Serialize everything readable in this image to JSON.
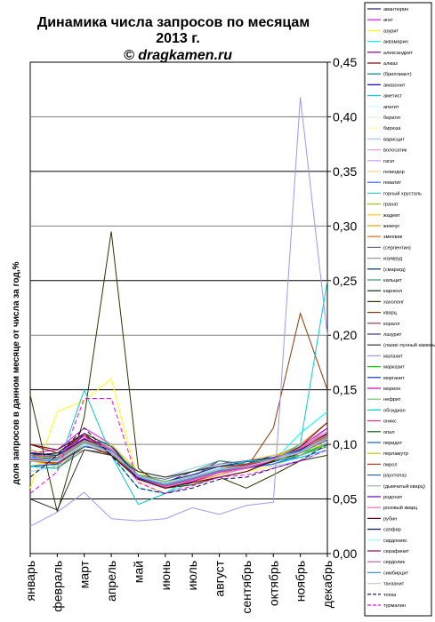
{
  "chart_data": {
    "type": "line",
    "title": "Динамика числа запросов по месяцам",
    "subtitle": "2013 г.",
    "copyright": "© dragkamen.ru",
    "ylabel": "доля запросов в данном месяце от числа за год,%",
    "ylim": [
      0,
      0.45
    ],
    "ytick_labels": [
      "0,00",
      "0,05",
      "0,10",
      "0,15",
      "0,20",
      "0,25",
      "0,30",
      "0,35",
      "0,40",
      "0,45"
    ],
    "grid": true,
    "legend_position": "right",
    "categories": [
      "январь",
      "февраль",
      "март",
      "апрель",
      "май",
      "июнь",
      "июль",
      "август",
      "сентябрь",
      "октябрь",
      "ноябрь",
      "декабрь"
    ],
    "series": [
      {
        "name": "авантюрин",
        "color": "#1a1a8c",
        "values": [
          0.085,
          0.088,
          0.1,
          0.09,
          0.07,
          0.065,
          0.075,
          0.08,
          0.078,
          0.085,
          0.09,
          0.1
        ]
      },
      {
        "name": "агат",
        "color": "#ff00ff",
        "values": [
          0.092,
          0.095,
          0.115,
          0.1,
          0.065,
          0.06,
          0.072,
          0.08,
          0.08,
          0.088,
          0.1,
          0.12
        ]
      },
      {
        "name": "азурит",
        "color": "#ffff00",
        "values": [
          0.06,
          0.13,
          0.14,
          0.16,
          0.065,
          0.055,
          0.065,
          0.07,
          0.075,
          0.08,
          0.09,
          0.1
        ]
      },
      {
        "name": "аквамарин",
        "color": "#00ffff",
        "values": [
          0.09,
          0.08,
          0.1,
          0.09,
          0.06,
          0.055,
          0.065,
          0.075,
          0.08,
          0.085,
          0.11,
          0.13
        ]
      },
      {
        "name": "александрит",
        "color": "#800080",
        "values": [
          0.095,
          0.088,
          0.105,
          0.095,
          0.07,
          0.062,
          0.07,
          0.085,
          0.08,
          0.082,
          0.09,
          0.1
        ]
      },
      {
        "name": "алмаз",
        "color": "#800000",
        "values": [
          0.1,
          0.092,
          0.108,
          0.09,
          0.068,
          0.06,
          0.065,
          0.07,
          0.075,
          0.085,
          0.095,
          0.115
        ]
      },
      {
        "name": "(бриллиант)",
        "color": "#008080",
        "values": [
          0.092,
          0.085,
          0.1,
          0.09,
          0.072,
          0.065,
          0.072,
          0.08,
          0.08,
          0.085,
          0.088,
          0.095
        ]
      },
      {
        "name": "амазонит",
        "color": "#0000ff",
        "values": [
          0.085,
          0.082,
          0.11,
          0.1,
          0.07,
          0.06,
          0.07,
          0.075,
          0.082,
          0.09,
          0.095,
          0.11
        ]
      },
      {
        "name": "аметист",
        "color": "#00ccff",
        "values": [
          0.09,
          0.085,
          0.105,
          0.095,
          0.07,
          0.062,
          0.068,
          0.078,
          0.08,
          0.082,
          0.088,
          0.095
        ]
      },
      {
        "name": "апатит",
        "color": "#ccffff",
        "values": [
          0.08,
          0.075,
          0.095,
          0.09,
          0.065,
          0.06,
          0.07,
          0.08,
          0.085,
          0.09,
          0.1,
          0.11
        ]
      },
      {
        "name": "берилл",
        "color": "#ccffcc",
        "values": [
          0.082,
          0.08,
          0.1,
          0.095,
          0.075,
          0.07,
          0.075,
          0.082,
          0.08,
          0.085,
          0.09,
          0.1
        ]
      },
      {
        "name": "бирюза",
        "color": "#ffff99",
        "values": [
          0.09,
          0.092,
          0.11,
          0.1,
          0.072,
          0.065,
          0.07,
          0.078,
          0.08,
          0.085,
          0.09,
          0.098
        ]
      },
      {
        "name": "варисцит",
        "color": "#99ccff",
        "values": [
          0.075,
          0.08,
          0.1,
          0.1,
          0.075,
          0.07,
          0.078,
          0.085,
          0.082,
          0.08,
          0.085,
          0.095
        ]
      },
      {
        "name": "волосатик",
        "color": "#ff99cc",
        "values": [
          0.085,
          0.09,
          0.1,
          0.09,
          0.07,
          0.065,
          0.07,
          0.075,
          0.08,
          0.085,
          0.095,
          0.11
        ]
      },
      {
        "name": "гагат",
        "color": "#cc99ff",
        "values": [
          0.09,
          0.088,
          0.1,
          0.092,
          0.068,
          0.06,
          0.066,
          0.072,
          0.078,
          0.085,
          0.095,
          0.115
        ]
      },
      {
        "name": "гелиодор",
        "color": "#ffcc99",
        "values": [
          0.08,
          0.085,
          0.095,
          0.09,
          0.075,
          0.07,
          0.072,
          0.08,
          0.082,
          0.085,
          0.092,
          0.1
        ]
      },
      {
        "name": "гематит",
        "color": "#3366ff",
        "values": [
          0.088,
          0.09,
          0.105,
          0.1,
          0.07,
          0.062,
          0.07,
          0.075,
          0.078,
          0.082,
          0.09,
          0.1
        ]
      },
      {
        "name": "горный хрусталь",
        "color": "#33cccc",
        "values": [
          0.09,
          0.085,
          0.1,
          0.095,
          0.072,
          0.065,
          0.07,
          0.078,
          0.08,
          0.084,
          0.09,
          0.102
        ]
      },
      {
        "name": "гранат",
        "color": "#99cc00",
        "values": [
          0.095,
          0.088,
          0.105,
          0.09,
          0.07,
          0.06,
          0.068,
          0.075,
          0.08,
          0.088,
          0.098,
          0.11
        ]
      },
      {
        "name": "жадеит",
        "color": "#ffcc00",
        "values": [
          0.085,
          0.08,
          0.1,
          0.1,
          0.075,
          0.065,
          0.07,
          0.078,
          0.085,
          0.09,
          0.095,
          0.1
        ]
      },
      {
        "name": "жемчуг",
        "color": "#ff9900",
        "values": [
          0.09,
          0.085,
          0.095,
          0.09,
          0.07,
          0.063,
          0.066,
          0.072,
          0.08,
          0.088,
          0.1,
          0.12
        ]
      },
      {
        "name": "змеевик",
        "color": "#ff6600",
        "values": [
          0.085,
          0.082,
          0.1,
          0.09,
          0.07,
          0.065,
          0.072,
          0.08,
          0.082,
          0.085,
          0.095,
          0.105
        ]
      },
      {
        "name": "(серпентин)",
        "color": "#666699",
        "values": [
          0.08,
          0.078,
          0.095,
          0.092,
          0.072,
          0.068,
          0.075,
          0.082,
          0.085,
          0.088,
          0.09,
          0.1
        ]
      },
      {
        "name": "изумруд",
        "color": "#969696",
        "values": [
          0.09,
          0.09,
          0.108,
          0.095,
          0.068,
          0.06,
          0.066,
          0.074,
          0.078,
          0.085,
          0.095,
          0.11
        ]
      },
      {
        "name": "(смарагд)",
        "color": "#003366",
        "values": [
          0.085,
          0.086,
          0.1,
          0.092,
          0.07,
          0.064,
          0.07,
          0.078,
          0.08,
          0.086,
          0.093,
          0.105
        ]
      },
      {
        "name": "кальцит",
        "color": "#339966",
        "values": [
          0.08,
          0.078,
          0.098,
          0.095,
          0.075,
          0.07,
          0.075,
          0.085,
          0.082,
          0.085,
          0.09,
          0.098
        ]
      },
      {
        "name": "карнеол",
        "color": "#003300",
        "values": [
          0.09,
          0.092,
          0.11,
          0.098,
          0.07,
          0.062,
          0.068,
          0.075,
          0.078,
          0.084,
          0.092,
          0.108
        ]
      },
      {
        "name": "хахолонг",
        "color": "#333300",
        "values": [
          0.145,
          0.038,
          0.125,
          0.295,
          0.078,
          0.06,
          0.063,
          0.07,
          0.06,
          0.072,
          0.085,
          0.09
        ]
      },
      {
        "name": "кварц",
        "color": "#993300",
        "values": [
          0.085,
          0.084,
          0.1,
          0.09,
          0.07,
          0.065,
          0.07,
          0.075,
          0.078,
          0.115,
          0.22,
          0.15
        ]
      },
      {
        "name": "коралл",
        "color": "#993366",
        "values": [
          0.09,
          0.088,
          0.105,
          0.095,
          0.07,
          0.062,
          0.068,
          0.076,
          0.08,
          0.087,
          0.096,
          0.11
        ]
      },
      {
        "name": "лазурит",
        "color": "#333399",
        "values": [
          0.088,
          0.085,
          0.102,
          0.094,
          0.071,
          0.064,
          0.07,
          0.077,
          0.08,
          0.085,
          0.094,
          0.106
        ]
      },
      {
        "name": "(лазис-лунный камень)",
        "color": "#333333",
        "values": [
          0.05,
          0.04,
          0.095,
          0.09,
          0.075,
          0.07,
          0.075,
          0.08,
          0.082,
          0.085,
          0.09,
          0.1
        ]
      },
      {
        "name": "малахит",
        "color": "#9999ff",
        "values": [
          0.025,
          0.038,
          0.056,
          0.032,
          0.03,
          0.032,
          0.042,
          0.036,
          0.044,
          0.047,
          0.418,
          0.2
        ]
      },
      {
        "name": "марказит",
        "color": "#00cc00",
        "values": [
          0.085,
          0.09,
          0.105,
          0.095,
          0.07,
          0.063,
          0.07,
          0.078,
          0.082,
          0.088,
          0.092,
          0.1
        ]
      },
      {
        "name": "морганит",
        "color": "#0033cc",
        "values": [
          0.08,
          0.082,
          0.098,
          0.094,
          0.072,
          0.066,
          0.072,
          0.08,
          0.084,
          0.088,
          0.094,
          0.104
        ]
      },
      {
        "name": "морион",
        "color": "#cc00cc",
        "values": [
          0.092,
          0.09,
          0.108,
          0.096,
          0.068,
          0.06,
          0.066,
          0.074,
          0.078,
          0.085,
          0.098,
          0.115
        ]
      },
      {
        "name": "нефрит",
        "color": "#66cc66",
        "values": [
          0.085,
          0.085,
          0.1,
          0.092,
          0.072,
          0.066,
          0.07,
          0.076,
          0.08,
          0.085,
          0.09,
          0.1
        ]
      },
      {
        "name": "обсидиан",
        "color": "#00cccc",
        "values": [
          0.08,
          0.078,
          0.15,
          0.09,
          0.045,
          0.055,
          0.07,
          0.075,
          0.085,
          0.085,
          0.1,
          0.25
        ]
      },
      {
        "name": "оникс",
        "color": "#ff3366",
        "values": [
          0.09,
          0.088,
          0.104,
          0.094,
          0.07,
          0.062,
          0.068,
          0.075,
          0.079,
          0.086,
          0.095,
          0.108
        ]
      },
      {
        "name": "опал",
        "color": "#006600",
        "values": [
          0.085,
          0.084,
          0.1,
          0.093,
          0.071,
          0.065,
          0.071,
          0.078,
          0.081,
          0.087,
          0.094,
          0.105
        ]
      },
      {
        "name": "перидот",
        "color": "#0066cc",
        "values": [
          0.088,
          0.086,
          0.102,
          0.095,
          0.07,
          0.063,
          0.069,
          0.076,
          0.08,
          0.086,
          0.093,
          0.106
        ]
      },
      {
        "name": "перламутр",
        "color": "#cccc00",
        "values": [
          0.09,
          0.087,
          0.103,
          0.094,
          0.07,
          0.063,
          0.069,
          0.077,
          0.08,
          0.086,
          0.094,
          0.107
        ]
      },
      {
        "name": "пирол",
        "color": "#cc3300",
        "values": [
          0.085,
          0.083,
          0.1,
          0.092,
          0.071,
          0.065,
          0.07,
          0.078,
          0.082,
          0.087,
          0.093,
          0.104
        ]
      },
      {
        "name": "раухтопаз",
        "color": "#336699",
        "values": [
          0.087,
          0.085,
          0.101,
          0.093,
          0.071,
          0.064,
          0.07,
          0.077,
          0.081,
          0.086,
          0.093,
          0.105
        ]
      },
      {
        "name": "(дымчатый кварц)",
        "color": "#aaaaaa",
        "values": [
          0.086,
          0.084,
          0.1,
          0.092,
          0.07,
          0.064,
          0.07,
          0.077,
          0.081,
          0.086,
          0.092,
          0.104
        ]
      },
      {
        "name": "родонит",
        "color": "#6600cc",
        "values": [
          0.09,
          0.088,
          0.104,
          0.095,
          0.07,
          0.062,
          0.068,
          0.075,
          0.079,
          0.087,
          0.096,
          0.109
        ]
      },
      {
        "name": "розовый кварц",
        "color": "#ff66cc",
        "values": [
          0.092,
          0.09,
          0.106,
          0.096,
          0.069,
          0.061,
          0.067,
          0.074,
          0.078,
          0.086,
          0.097,
          0.112
        ]
      },
      {
        "name": "рубин",
        "color": "#660000",
        "values": [
          0.1,
          0.095,
          0.11,
          0.09,
          0.068,
          0.06,
          0.065,
          0.07,
          0.075,
          0.085,
          0.098,
          0.12
        ]
      },
      {
        "name": "сапфир",
        "color": "#000080",
        "values": [
          0.092,
          0.09,
          0.105,
          0.094,
          0.069,
          0.062,
          0.068,
          0.075,
          0.079,
          0.087,
          0.095,
          0.11
        ]
      },
      {
        "name": "сардоникс",
        "color": "#99ffff",
        "values": [
          0.085,
          0.084,
          0.1,
          0.093,
          0.071,
          0.065,
          0.071,
          0.078,
          0.081,
          0.087,
          0.094,
          0.105
        ]
      },
      {
        "name": "серафинит",
        "color": "#990066",
        "values": [
          0.086,
          0.085,
          0.101,
          0.093,
          0.071,
          0.064,
          0.07,
          0.077,
          0.081,
          0.086,
          0.093,
          0.104
        ]
      },
      {
        "name": "сердолик",
        "color": "#cc6699",
        "values": [
          0.09,
          0.088,
          0.104,
          0.095,
          0.07,
          0.062,
          0.068,
          0.075,
          0.079,
          0.087,
          0.096,
          0.109
        ]
      },
      {
        "name": "симбирцит",
        "color": "#3399ff",
        "values": [
          0.088,
          0.086,
          0.102,
          0.094,
          0.07,
          0.063,
          0.069,
          0.076,
          0.08,
          0.086,
          0.094,
          0.106
        ]
      },
      {
        "name": "танзанит",
        "color": "#cccccc",
        "values": [
          0.087,
          0.085,
          0.101,
          0.093,
          0.071,
          0.064,
          0.07,
          0.077,
          0.08,
          0.086,
          0.093,
          0.105
        ]
      },
      {
        "name": "топаз",
        "color": "#000066",
        "dash": true,
        "values": [
          0.07,
          0.09,
          0.115,
          0.09,
          0.06,
          0.055,
          0.06,
          0.068,
          0.07,
          0.078,
          0.085,
          0.1
        ]
      },
      {
        "name": "турмалин",
        "color": "#ff00ff",
        "dash": true,
        "values": [
          0.055,
          0.075,
          0.142,
          0.142,
          0.065,
          0.055,
          0.062,
          0.07,
          0.072,
          0.078,
          0.085,
          0.095
        ]
      }
    ]
  }
}
